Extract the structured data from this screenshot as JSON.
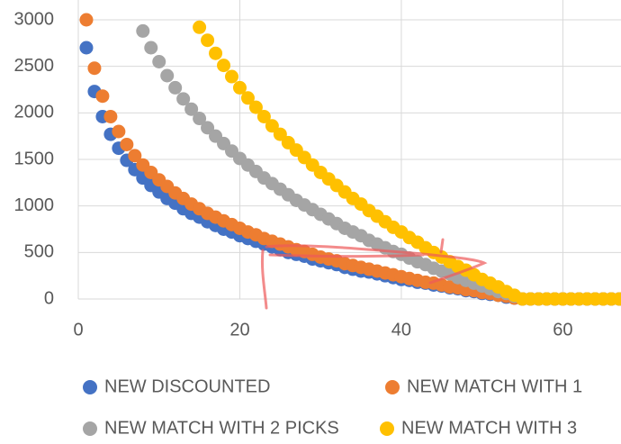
{
  "chart_data": {
    "type": "scatter",
    "x": [
      1,
      2,
      3,
      4,
      5,
      6,
      7,
      8,
      9,
      10,
      11,
      12,
      13,
      14,
      15,
      16,
      17,
      18,
      19,
      20,
      21,
      22,
      23,
      24,
      25,
      26,
      27,
      28,
      29,
      30,
      31,
      32,
      33,
      34,
      35,
      36,
      37,
      38,
      39,
      40,
      41,
      42,
      43,
      44,
      45,
      46,
      47,
      48,
      49,
      50,
      51,
      52,
      53,
      54,
      55,
      56,
      57,
      58,
      59,
      60,
      61,
      62,
      63,
      64,
      65,
      66,
      67
    ],
    "series": [
      {
        "name": "NEW DISCOUNTED",
        "color": "#4472c4",
        "values": [
          2700,
          2230,
          1960,
          1770,
          1620,
          1490,
          1390,
          1300,
          1220,
          1150,
          1080,
          1030,
          970,
          920,
          880,
          830,
          790,
          750,
          720,
          680,
          650,
          620,
          590,
          560,
          530,
          500,
          480,
          460,
          430,
          410,
          390,
          370,
          340,
          320,
          300,
          290,
          270,
          250,
          230,
          210,
          200,
          180,
          170,
          150,
          140,
          120,
          110,
          90,
          80,
          60,
          50,
          40,
          20,
          10,
          0,
          0,
          0,
          0,
          0,
          0,
          0,
          0,
          0,
          0,
          0,
          0,
          0
        ]
      },
      {
        "name": "NEW MATCH WITH 1",
        "color": "#ed7d31",
        "values": [
          3000,
          2480,
          2180,
          1960,
          1800,
          1660,
          1540,
          1440,
          1360,
          1280,
          1210,
          1140,
          1080,
          1020,
          970,
          920,
          880,
          840,
          800,
          760,
          720,
          690,
          650,
          620,
          590,
          560,
          530,
          510,
          480,
          450,
          430,
          410,
          380,
          360,
          340,
          320,
          300,
          280,
          260,
          240,
          220,
          200,
          180,
          170,
          150,
          130,
          120,
          100,
          90,
          70,
          60,
          40,
          30,
          10,
          0,
          0,
          0,
          0,
          0,
          0,
          0,
          0,
          0,
          0,
          0,
          0,
          0
        ]
      },
      {
        "name": "NEW MATCH WITH 2 PICKS",
        "color": "#a5a5a5",
        "values": [
          null,
          null,
          null,
          null,
          null,
          null,
          null,
          2880,
          2700,
          2550,
          2400,
          2270,
          2150,
          2040,
          1940,
          1840,
          1750,
          1670,
          1590,
          1510,
          1440,
          1370,
          1300,
          1240,
          1180,
          1120,
          1060,
          1010,
          960,
          910,
          860,
          810,
          760,
          720,
          680,
          630,
          590,
          550,
          510,
          480,
          440,
          400,
          370,
          330,
          300,
          270,
          230,
          200,
          170,
          140,
          110,
          80,
          60,
          30,
          0,
          0,
          0,
          0,
          0,
          0,
          0,
          0,
          0,
          0,
          0,
          0,
          0
        ]
      },
      {
        "name": "NEW MATCH WITH 3",
        "color": "#ffc000",
        "values": [
          null,
          null,
          null,
          null,
          null,
          null,
          null,
          null,
          null,
          null,
          null,
          null,
          null,
          null,
          2920,
          2780,
          2640,
          2510,
          2390,
          2270,
          2160,
          2060,
          1960,
          1860,
          1770,
          1680,
          1600,
          1520,
          1440,
          1360,
          1290,
          1220,
          1150,
          1080,
          1020,
          950,
          890,
          830,
          770,
          720,
          660,
          610,
          550,
          500,
          450,
          400,
          350,
          310,
          260,
          210,
          170,
          130,
          80,
          40,
          0,
          0,
          0,
          0,
          0,
          0,
          0,
          0,
          0,
          0,
          0,
          0,
          0
        ]
      }
    ],
    "xlim": [
      0,
      67.2
    ],
    "xticks": [
      0,
      20,
      40,
      60
    ],
    "ylim": [
      0,
      3000
    ],
    "yticks": [
      0,
      500,
      1000,
      1500,
      2000,
      2500,
      3000
    ],
    "grid": true
  }
}
